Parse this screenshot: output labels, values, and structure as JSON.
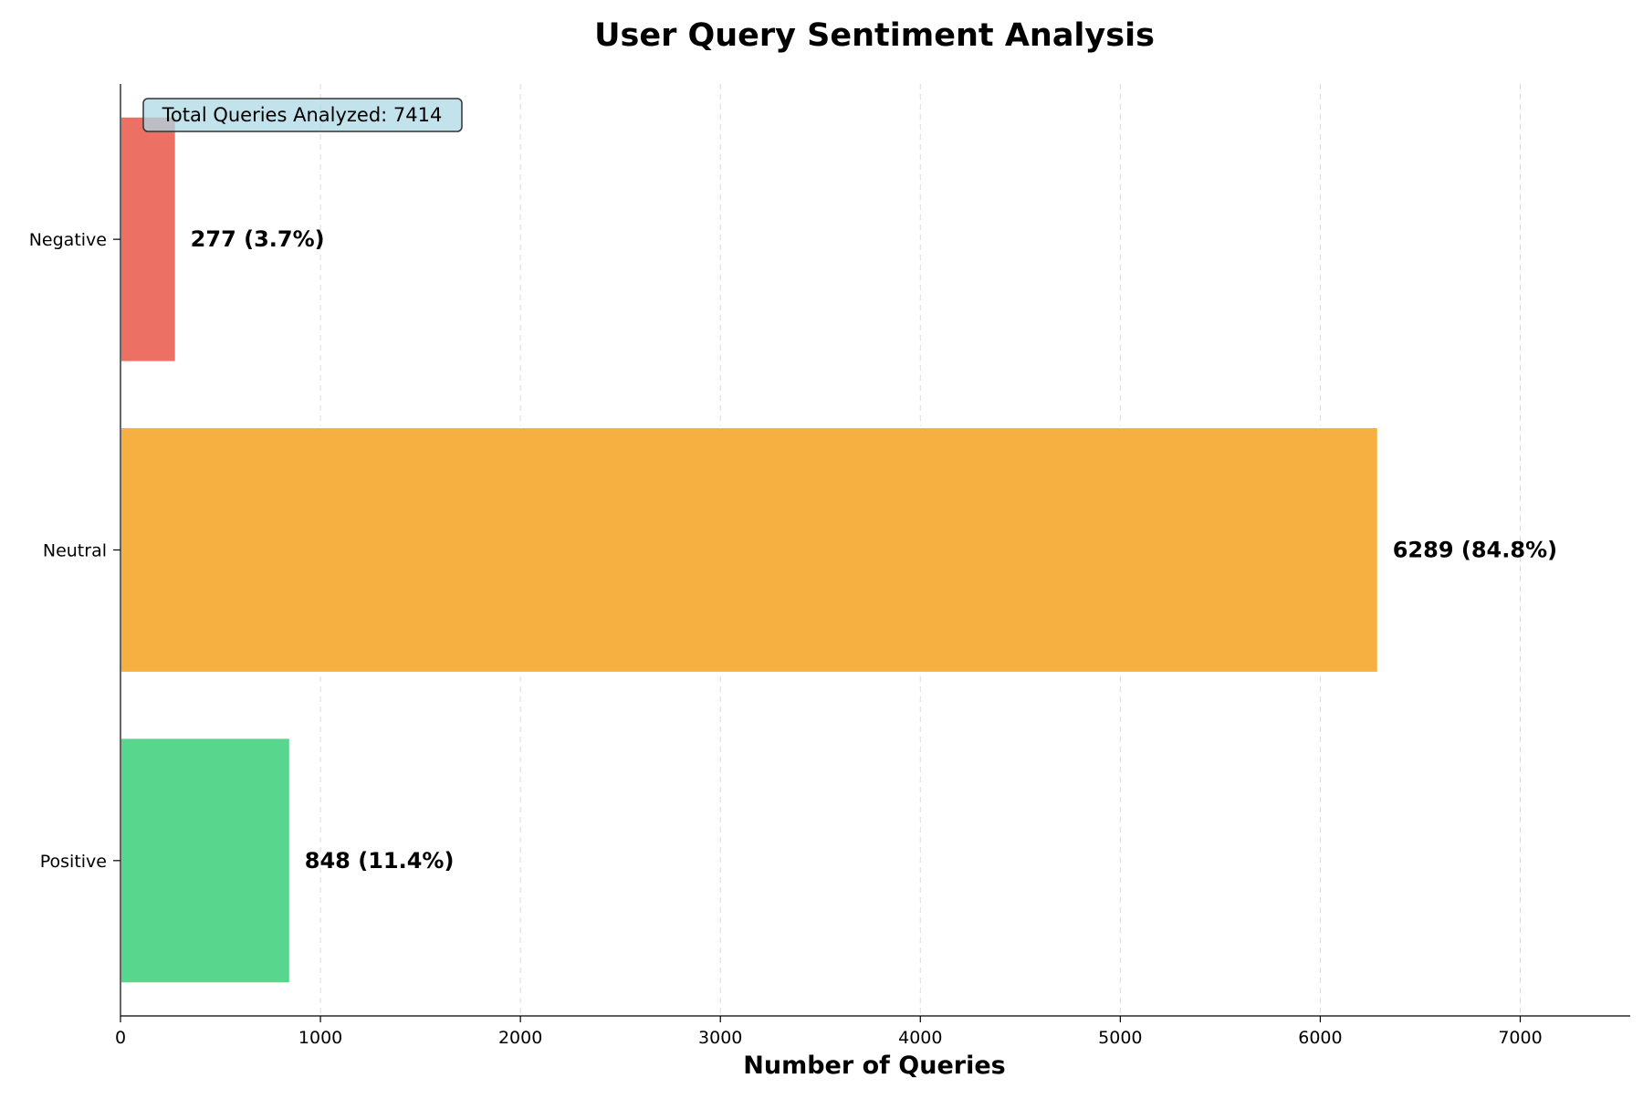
{
  "chart_data": {
    "type": "bar",
    "orientation": "horizontal",
    "title": "User Query Sentiment Analysis",
    "xlabel": "Number of Queries",
    "ylabel": "",
    "categories": [
      "Negative",
      "Neutral",
      "Positive"
    ],
    "values": [
      277,
      6289,
      848
    ],
    "data_labels": [
      "277 (3.7%)",
      "6289 (84.8%)",
      "848 (11.4%)"
    ],
    "colors": [
      "#ec7063",
      "#f5b041",
      "#58d68d"
    ],
    "xlim": [
      0,
      7550
    ],
    "xticks": [
      0,
      1000,
      2000,
      3000,
      4000,
      5000,
      6000,
      7000
    ],
    "xtick_labels": [
      "0",
      "1000",
      "2000",
      "3000",
      "4000",
      "5000",
      "6000",
      "7000"
    ],
    "grid": "x-axis dashed",
    "annotation": "Total Queries Analyzed: 7414",
    "annotation_placement": "top-left"
  }
}
